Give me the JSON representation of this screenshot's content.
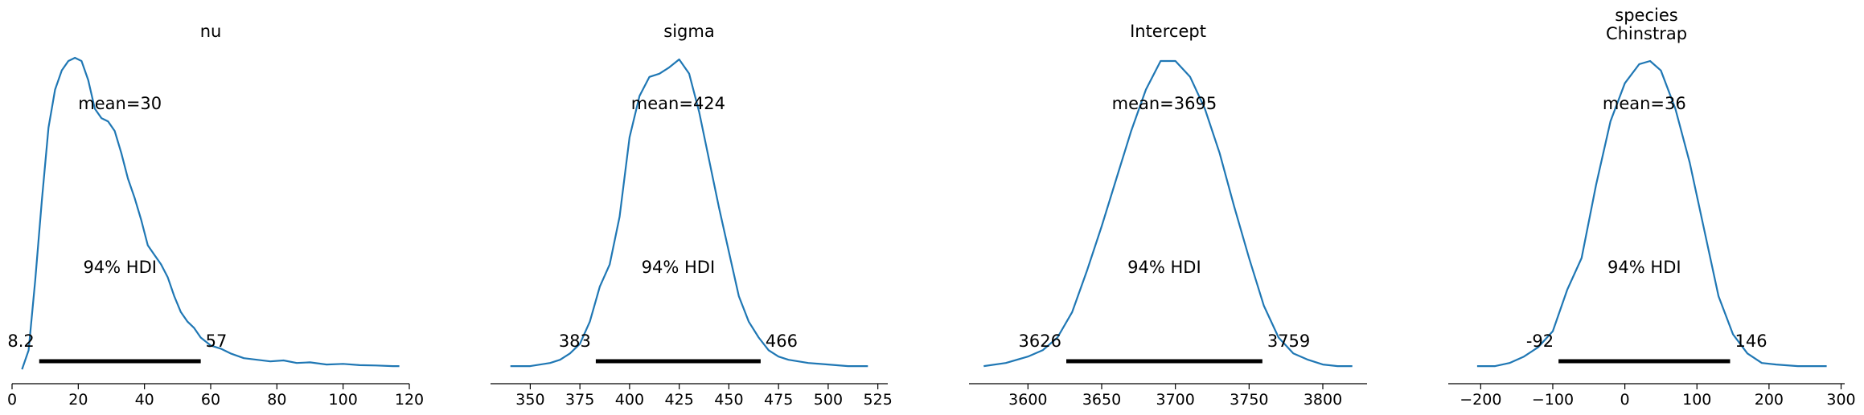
{
  "chart_data": [
    {
      "type": "line",
      "title_lines": [
        "nu"
      ],
      "xlim": [
        0,
        120
      ],
      "ylim": [
        0,
        1
      ],
      "ticks": [
        0,
        20,
        40,
        60,
        80,
        100,
        120
      ],
      "tick_labels": [
        "0",
        "20",
        "40",
        "60",
        "80",
        "100",
        "120"
      ],
      "x": [
        3,
        5,
        7,
        9,
        11,
        13,
        15,
        17,
        19,
        21,
        23,
        25,
        27,
        29,
        31,
        33,
        35,
        37,
        39,
        41,
        43,
        45,
        47,
        49,
        51,
        53,
        55,
        57,
        60,
        63,
        66,
        70,
        74,
        78,
        82,
        86,
        90,
        95,
        100,
        105,
        110,
        115,
        117
      ],
      "y": [
        0.02,
        0.08,
        0.3,
        0.55,
        0.78,
        0.9,
        0.96,
        0.99,
        1.0,
        0.99,
        0.93,
        0.84,
        0.81,
        0.8,
        0.77,
        0.7,
        0.62,
        0.56,
        0.49,
        0.41,
        0.38,
        0.35,
        0.31,
        0.25,
        0.2,
        0.17,
        0.15,
        0.12,
        0.095,
        0.085,
        0.07,
        0.055,
        0.05,
        0.045,
        0.048,
        0.04,
        0.042,
        0.035,
        0.037,
        0.033,
        0.032,
        0.03,
        0.03
      ],
      "mean_label": "mean=30",
      "hdi_label": "94% HDI",
      "hdi": [
        8.2,
        57
      ],
      "hdi_low_label": "8.2",
      "hdi_high_label": "57"
    },
    {
      "type": "line",
      "title_lines": [
        "sigma"
      ],
      "xlim": [
        330,
        530
      ],
      "ylim": [
        0,
        1
      ],
      "ticks": [
        350,
        375,
        400,
        425,
        450,
        475,
        500,
        525
      ],
      "tick_labels": [
        "350",
        "375",
        "400",
        "425",
        "450",
        "475",
        "500",
        "525"
      ],
      "x": [
        340,
        350,
        360,
        365,
        370,
        375,
        380,
        385,
        390,
        395,
        400,
        405,
        410,
        415,
        420,
        425,
        430,
        435,
        440,
        445,
        450,
        455,
        460,
        465,
        470,
        475,
        480,
        490,
        500,
        510,
        520
      ],
      "y": [
        0.03,
        0.03,
        0.04,
        0.05,
        0.07,
        0.1,
        0.17,
        0.28,
        0.35,
        0.5,
        0.75,
        0.88,
        0.94,
        0.95,
        0.97,
        0.995,
        0.95,
        0.83,
        0.68,
        0.53,
        0.39,
        0.25,
        0.17,
        0.12,
        0.08,
        0.06,
        0.05,
        0.04,
        0.035,
        0.03,
        0.03
      ],
      "mean_label": "mean=424",
      "hdi_label": "94% HDI",
      "hdi": [
        383,
        466
      ],
      "hdi_low_label": "383",
      "hdi_high_label": "466"
    },
    {
      "type": "line",
      "title_lines": [
        "Intercept"
      ],
      "xlim": [
        3560,
        3830
      ],
      "ylim": [
        0,
        1
      ],
      "ticks": [
        3600,
        3650,
        3700,
        3750,
        3800
      ],
      "tick_labels": [
        "3600",
        "3650",
        "3700",
        "3750",
        "3800"
      ],
      "x": [
        3570,
        3585,
        3600,
        3610,
        3620,
        3630,
        3640,
        3650,
        3660,
        3670,
        3680,
        3690,
        3700,
        3710,
        3720,
        3730,
        3740,
        3750,
        3760,
        3770,
        3780,
        3790,
        3800,
        3810,
        3820
      ],
      "y": [
        0.03,
        0.04,
        0.06,
        0.08,
        0.12,
        0.2,
        0.33,
        0.47,
        0.62,
        0.77,
        0.9,
        0.99,
        0.99,
        0.94,
        0.84,
        0.7,
        0.53,
        0.37,
        0.22,
        0.12,
        0.07,
        0.05,
        0.035,
        0.03,
        0.03
      ],
      "mean_label": "mean=3695",
      "hdi_label": "94% HDI",
      "hdi": [
        3626,
        3759
      ],
      "hdi_low_label": "3626",
      "hdi_high_label": "3759"
    },
    {
      "type": "line",
      "title_lines": [
        "species",
        "Chinstrap"
      ],
      "xlim": [
        -245,
        305
      ],
      "ylim": [
        0,
        1
      ],
      "ticks": [
        -200,
        -100,
        0,
        100,
        200,
        300
      ],
      "tick_labels": [
        "−200",
        "−100",
        "0",
        "100",
        "200",
        "300"
      ],
      "x": [
        -205,
        -180,
        -160,
        -140,
        -120,
        -100,
        -80,
        -60,
        -40,
        -20,
        0,
        20,
        35,
        50,
        70,
        90,
        110,
        130,
        150,
        170,
        190,
        210,
        240,
        280
      ],
      "y": [
        0.03,
        0.03,
        0.04,
        0.06,
        0.09,
        0.14,
        0.27,
        0.37,
        0.6,
        0.8,
        0.92,
        0.98,
        0.99,
        0.96,
        0.84,
        0.67,
        0.46,
        0.25,
        0.13,
        0.07,
        0.04,
        0.035,
        0.03,
        0.03
      ],
      "mean_label": "mean=36",
      "hdi_label": "94% HDI",
      "hdi": [
        -92,
        146
      ],
      "hdi_low_label": "-92",
      "hdi_high_label": "146"
    }
  ]
}
